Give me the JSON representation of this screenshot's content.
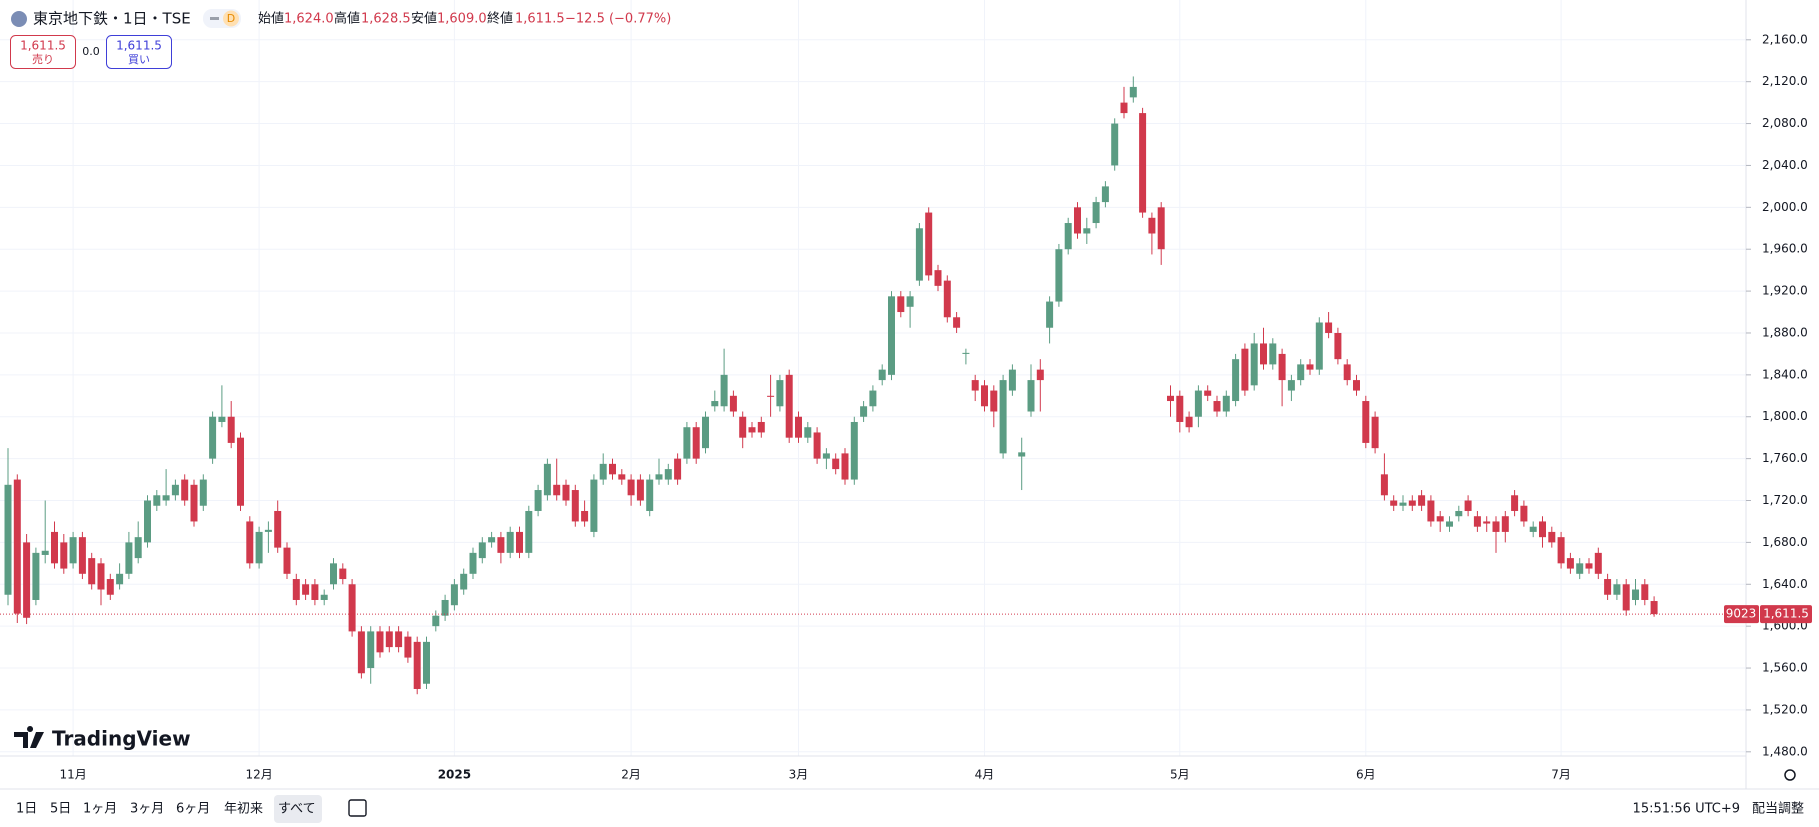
{
  "header": {
    "title": "東京地下鉄・1日・TSE",
    "badge": "D",
    "open_label": "始値",
    "open": "1,624.0",
    "high_label": "高値",
    "high": "1,628.5",
    "low_label": "安値",
    "low": "1,609.0",
    "close_label": "終値",
    "close": "1,611.5",
    "change": "−12.5 (−0.77%)"
  },
  "quote": {
    "sell_price": "1,611.5",
    "sell_label": "売り",
    "spread": "0.0",
    "buy_price": "1,611.5",
    "buy_label": "買い"
  },
  "logo": "TradingView",
  "toolbar": {
    "ranges": [
      "1日",
      "5日",
      "1ヶ月",
      "3ヶ月",
      "6ヶ月",
      "年初来",
      "すべて"
    ],
    "time": "15:51:56 UTC+9",
    "adjust": "配当調整"
  },
  "chart_data": {
    "type": "candlestick",
    "up_color": "#5b9c83",
    "down_color": "#d1394c",
    "grid": true,
    "ylim": [
      1476,
      2198
    ],
    "yticks": [
      {
        "value": 1480,
        "label": "1,480.0"
      },
      {
        "value": 1520,
        "label": "1,520.0"
      },
      {
        "value": 1560,
        "label": "1,560.0"
      },
      {
        "value": 1600,
        "label": "1,600.0"
      },
      {
        "value": 1640,
        "label": "1,640.0"
      },
      {
        "value": 1680,
        "label": "1,680.0"
      },
      {
        "value": 1720,
        "label": "1,720.0"
      },
      {
        "value": 1760,
        "label": "1,760.0"
      },
      {
        "value": 1800,
        "label": "1,800.0"
      },
      {
        "value": 1840,
        "label": "1,840.0"
      },
      {
        "value": 1880,
        "label": "1,880.0"
      },
      {
        "value": 1920,
        "label": "1,920.0"
      },
      {
        "value": 1960,
        "label": "1,960.0"
      },
      {
        "value": 2000,
        "label": "2,000.0"
      },
      {
        "value": 2040,
        "label": "2,040.0"
      },
      {
        "value": 2080,
        "label": "2,080.0"
      },
      {
        "value": 2120,
        "label": "2,120.0"
      },
      {
        "value": 2160,
        "label": "2,160.0"
      }
    ],
    "last_price": {
      "symbol": "9023",
      "label": "1,611.5"
    },
    "categories": [
      null,
      null,
      null,
      null,
      null,
      null,
      null,
      "11月",
      null,
      null,
      null,
      null,
      null,
      null,
      null,
      null,
      null,
      null,
      null,
      null,
      null,
      null,
      null,
      null,
      null,
      null,
      null,
      "12月",
      null,
      null,
      null,
      null,
      null,
      null,
      null,
      null,
      null,
      null,
      null,
      null,
      null,
      null,
      null,
      null,
      null,
      null,
      null,
      null,
      "2025",
      null,
      null,
      null,
      null,
      null,
      null,
      null,
      null,
      null,
      null,
      null,
      null,
      null,
      null,
      null,
      null,
      null,
      null,
      "2月",
      null,
      null,
      null,
      null,
      null,
      null,
      null,
      null,
      null,
      null,
      null,
      null,
      null,
      null,
      null,
      null,
      null,
      "3月",
      null,
      null,
      null,
      null,
      null,
      null,
      null,
      null,
      null,
      null,
      null,
      null,
      null,
      null,
      null,
      null,
      null,
      null,
      null,
      "4月",
      null,
      null,
      null,
      null,
      null,
      null,
      null,
      null,
      null,
      null,
      null,
      null,
      null,
      null,
      null,
      null,
      null,
      null,
      null,
      null,
      "5月",
      null,
      null,
      null,
      null,
      null,
      null,
      null,
      null,
      null,
      null,
      null,
      null,
      null,
      null,
      null,
      null,
      null,
      null,
      null,
      "6月",
      null,
      null,
      null,
      null,
      null,
      null,
      null,
      null,
      null,
      null,
      null,
      null,
      null,
      null,
      null,
      null,
      null,
      null,
      null,
      null,
      "7月",
      null,
      null,
      null,
      null,
      null,
      null,
      null,
      null,
      null,
      null
    ],
    "ohlc": [
      [
        1630,
        1770,
        1620,
        1735
      ],
      [
        1740,
        1745,
        1603,
        1612
      ],
      [
        1680,
        1688,
        1602,
        1608
      ],
      [
        1625,
        1675,
        1620,
        1670
      ],
      [
        1668,
        1720,
        1660,
        1672
      ],
      [
        1690,
        1700,
        1655,
        1660
      ],
      [
        1680,
        1688,
        1650,
        1655
      ],
      [
        1660,
        1690,
        1655,
        1685
      ],
      [
        1685,
        1690,
        1645,
        1650
      ],
      [
        1665,
        1670,
        1635,
        1640
      ],
      [
        1660,
        1665,
        1620,
        1635
      ],
      [
        1645,
        1650,
        1625,
        1630
      ],
      [
        1640,
        1660,
        1635,
        1650
      ],
      [
        1650,
        1690,
        1645,
        1680
      ],
      [
        1665,
        1700,
        1660,
        1685
      ],
      [
        1680,
        1725,
        1675,
        1720
      ],
      [
        1715,
        1730,
        1710,
        1725
      ],
      [
        1720,
        1750,
        1715,
        1725
      ],
      [
        1725,
        1740,
        1720,
        1735
      ],
      [
        1740,
        1745,
        1715,
        1720
      ],
      [
        1735,
        1740,
        1695,
        1700
      ],
      [
        1715,
        1745,
        1710,
        1740
      ],
      [
        1760,
        1805,
        1755,
        1800
      ],
      [
        1795,
        1830,
        1790,
        1800
      ],
      [
        1800,
        1815,
        1770,
        1775
      ],
      [
        1780,
        1785,
        1710,
        1715
      ],
      [
        1700,
        1705,
        1655,
        1660
      ],
      [
        1660,
        1695,
        1655,
        1690
      ],
      [
        1690,
        1700,
        1670,
        1692
      ],
      [
        1710,
        1720,
        1670,
        1675
      ],
      [
        1675,
        1680,
        1645,
        1650
      ],
      [
        1645,
        1650,
        1620,
        1625
      ],
      [
        1640,
        1645,
        1625,
        1630
      ],
      [
        1640,
        1645,
        1620,
        1625
      ],
      [
        1625,
        1635,
        1620,
        1630
      ],
      [
        1640,
        1665,
        1635,
        1660
      ],
      [
        1655,
        1660,
        1640,
        1645
      ],
      [
        1640,
        1645,
        1590,
        1595
      ],
      [
        1595,
        1600,
        1550,
        1555
      ],
      [
        1560,
        1600,
        1545,
        1595
      ],
      [
        1595,
        1600,
        1570,
        1575
      ],
      [
        1595,
        1600,
        1575,
        1580
      ],
      [
        1595,
        1600,
        1575,
        1580
      ],
      [
        1590,
        1595,
        1565,
        1570
      ],
      [
        1585,
        1590,
        1535,
        1540
      ],
      [
        1545,
        1590,
        1540,
        1585
      ],
      [
        1600,
        1615,
        1595,
        1610
      ],
      [
        1610,
        1630,
        1605,
        1625
      ],
      [
        1620,
        1645,
        1615,
        1640
      ],
      [
        1635,
        1655,
        1630,
        1650
      ],
      [
        1650,
        1675,
        1645,
        1670
      ],
      [
        1665,
        1685,
        1660,
        1680
      ],
      [
        1680,
        1690,
        1675,
        1685
      ],
      [
        1685,
        1690,
        1660,
        1670
      ],
      [
        1670,
        1695,
        1665,
        1690
      ],
      [
        1690,
        1695,
        1665,
        1670
      ],
      [
        1670,
        1715,
        1665,
        1710
      ],
      [
        1710,
        1735,
        1705,
        1730
      ],
      [
        1725,
        1760,
        1720,
        1755
      ],
      [
        1735,
        1760,
        1720,
        1725
      ],
      [
        1735,
        1740,
        1715,
        1720
      ],
      [
        1730,
        1735,
        1695,
        1700
      ],
      [
        1710,
        1720,
        1695,
        1700
      ],
      [
        1690,
        1745,
        1685,
        1740
      ],
      [
        1740,
        1765,
        1735,
        1755
      ],
      [
        1755,
        1760,
        1740,
        1745
      ],
      [
        1745,
        1750,
        1735,
        1740
      ],
      [
        1740,
        1745,
        1715,
        1725
      ],
      [
        1740,
        1745,
        1715,
        1720
      ],
      [
        1710,
        1745,
        1705,
        1740
      ],
      [
        1740,
        1760,
        1735,
        1745
      ],
      [
        1740,
        1755,
        1735,
        1750
      ],
      [
        1760,
        1765,
        1735,
        1740
      ],
      [
        1760,
        1795,
        1755,
        1790
      ],
      [
        1790,
        1795,
        1755,
        1760
      ],
      [
        1770,
        1805,
        1765,
        1800
      ],
      [
        1810,
        1825,
        1805,
        1815
      ],
      [
        1810,
        1865,
        1805,
        1840
      ],
      [
        1820,
        1825,
        1800,
        1805
      ],
      [
        1800,
        1805,
        1770,
        1780
      ],
      [
        1790,
        1795,
        1780,
        1785
      ],
      [
        1795,
        1800,
        1780,
        1785
      ],
      [
        1820,
        1840,
        1800,
        1819
      ],
      [
        1810,
        1840,
        1805,
        1835
      ],
      [
        1840,
        1845,
        1775,
        1780
      ],
      [
        1800,
        1805,
        1775,
        1780
      ],
      [
        1780,
        1795,
        1775,
        1790
      ],
      [
        1785,
        1790,
        1755,
        1760
      ],
      [
        1760,
        1770,
        1750,
        1765
      ],
      [
        1760,
        1765,
        1745,
        1750
      ],
      [
        1765,
        1770,
        1735,
        1740
      ],
      [
        1740,
        1800,
        1735,
        1795
      ],
      [
        1800,
        1815,
        1795,
        1810
      ],
      [
        1810,
        1830,
        1805,
        1825
      ],
      [
        1835,
        1850,
        1830,
        1845
      ],
      [
        1840,
        1920,
        1835,
        1915
      ],
      [
        1915,
        1920,
        1895,
        1900
      ],
      [
        1905,
        1920,
        1885,
        1915
      ],
      [
        1930,
        1985,
        1925,
        1980
      ],
      [
        1995,
        2000,
        1930,
        1935
      ],
      [
        1940,
        1945,
        1920,
        1925
      ],
      [
        1930,
        1935,
        1890,
        1895
      ],
      [
        1895,
        1900,
        1880,
        1885
      ],
      [
        1860,
        1865,
        1850,
        1861
      ],
      [
        1835,
        1840,
        1815,
        1825
      ],
      [
        1830,
        1835,
        1805,
        1810
      ],
      [
        1825,
        1830,
        1790,
        1805
      ],
      [
        1765,
        1840,
        1760,
        1835
      ],
      [
        1825,
        1850,
        1820,
        1845
      ],
      [
        1762,
        1780,
        1730,
        1766
      ],
      [
        1805,
        1850,
        1800,
        1835
      ],
      [
        1845,
        1855,
        1805,
        1835
      ],
      [
        1885,
        1915,
        1870,
        1910
      ],
      [
        1910,
        1965,
        1905,
        1960
      ],
      [
        1960,
        1990,
        1955,
        1985
      ],
      [
        2000,
        2005,
        1970,
        1975
      ],
      [
        1975,
        1990,
        1965,
        1980
      ],
      [
        1985,
        2010,
        1980,
        2005
      ],
      [
        2005,
        2025,
        2000,
        2020
      ],
      [
        2040,
        2085,
        2035,
        2080
      ],
      [
        2100,
        2115,
        2085,
        2090
      ],
      [
        2105,
        2125,
        2100,
        2115
      ],
      [
        2090,
        2095,
        1990,
        1995
      ],
      [
        1990,
        1995,
        1955,
        1975
      ],
      [
        2000,
        2005,
        1945,
        1960
      ],
      [
        1820,
        1830,
        1800,
        1815
      ],
      [
        1820,
        1825,
        1785,
        1795
      ],
      [
        1800,
        1805,
        1785,
        1790
      ],
      [
        1800,
        1830,
        1790,
        1825
      ],
      [
        1825,
        1830,
        1815,
        1820
      ],
      [
        1815,
        1820,
        1800,
        1805
      ],
      [
        1805,
        1825,
        1800,
        1820
      ],
      [
        1815,
        1860,
        1810,
        1855
      ],
      [
        1865,
        1870,
        1820,
        1825
      ],
      [
        1830,
        1880,
        1825,
        1870
      ],
      [
        1870,
        1885,
        1845,
        1850
      ],
      [
        1850,
        1875,
        1845,
        1870
      ],
      [
        1860,
        1865,
        1810,
        1835
      ],
      [
        1825,
        1840,
        1815,
        1835
      ],
      [
        1835,
        1855,
        1830,
        1850
      ],
      [
        1850,
        1855,
        1840,
        1845
      ],
      [
        1845,
        1895,
        1840,
        1890
      ],
      [
        1890,
        1900,
        1875,
        1880
      ],
      [
        1880,
        1885,
        1850,
        1855
      ],
      [
        1850,
        1855,
        1830,
        1835
      ],
      [
        1835,
        1840,
        1820,
        1825
      ],
      [
        1815,
        1820,
        1770,
        1775
      ],
      [
        1800,
        1805,
        1765,
        1770
      ],
      [
        1745,
        1765,
        1720,
        1725
      ],
      [
        1720,
        1725,
        1710,
        1715
      ],
      [
        1715,
        1725,
        1710,
        1718
      ],
      [
        1720,
        1725,
        1710,
        1715
      ],
      [
        1725,
        1730,
        1710,
        1715
      ],
      [
        1720,
        1725,
        1695,
        1700
      ],
      [
        1705,
        1710,
        1690,
        1700
      ],
      [
        1695,
        1705,
        1690,
        1700
      ],
      [
        1705,
        1715,
        1700,
        1710
      ],
      [
        1720,
        1725,
        1705,
        1710
      ],
      [
        1705,
        1710,
        1690,
        1695
      ],
      [
        1700,
        1705,
        1690,
        1698
      ],
      [
        1700,
        1705,
        1670,
        1690
      ],
      [
        1705,
        1710,
        1680,
        1690
      ],
      [
        1725,
        1730,
        1705,
        1710
      ],
      [
        1715,
        1720,
        1695,
        1700
      ],
      [
        1690,
        1700,
        1685,
        1695
      ],
      [
        1700,
        1705,
        1675,
        1685
      ],
      [
        1690,
        1695,
        1675,
        1680
      ],
      [
        1685,
        1690,
        1655,
        1660
      ],
      [
        1665,
        1670,
        1650,
        1655
      ],
      [
        1650,
        1665,
        1645,
        1660
      ],
      [
        1660,
        1665,
        1650,
        1655
      ],
      [
        1670,
        1675,
        1645,
        1650
      ],
      [
        1645,
        1650,
        1625,
        1630
      ],
      [
        1630,
        1645,
        1625,
        1640
      ],
      [
        1640,
        1645,
        1610,
        1615
      ],
      [
        1625,
        1645,
        1620,
        1635
      ],
      [
        1640,
        1645,
        1620,
        1625
      ],
      [
        1624.0,
        1628.5,
        1609.0,
        1611.5
      ]
    ]
  }
}
